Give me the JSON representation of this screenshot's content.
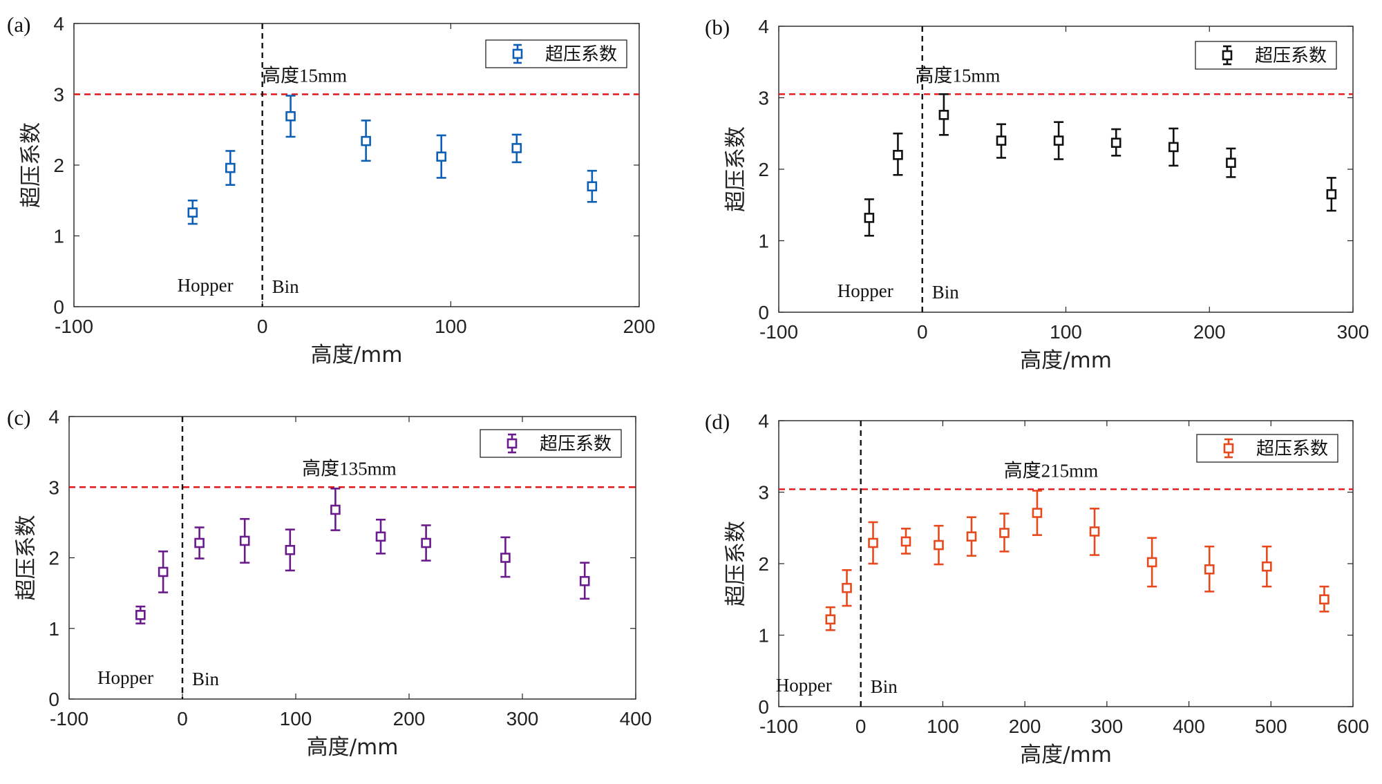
{
  "chart_data": [
    {
      "id": "a",
      "panel_label": "(a)",
      "type": "scatter",
      "xlabel": "高度/mm",
      "ylabel": "超压系数",
      "xlim": [
        -100,
        200
      ],
      "ylim": [
        0,
        4
      ],
      "xticks": [
        -100,
        0,
        100,
        200
      ],
      "yticks": [
        0,
        1,
        2,
        3,
        4
      ],
      "color": "#0C5FB4",
      "legend": "超压系数",
      "legend_position": "top-right",
      "ref_line": 3.0,
      "vline": 0,
      "hopper_label": "Hopper",
      "bin_label": "Bin",
      "annotation": "高度15mm",
      "annotation_at": {
        "x": 15,
        "y": 3.0
      },
      "points": [
        {
          "x": -37,
          "y": 1.33,
          "lo": 1.17,
          "hi": 1.5
        },
        {
          "x": -17,
          "y": 1.96,
          "lo": 1.72,
          "hi": 2.2
        },
        {
          "x": 15,
          "y": 2.69,
          "lo": 2.4,
          "hi": 2.98
        },
        {
          "x": 55,
          "y": 2.34,
          "lo": 2.06,
          "hi": 2.63
        },
        {
          "x": 95,
          "y": 2.12,
          "lo": 1.82,
          "hi": 2.42
        },
        {
          "x": 135,
          "y": 2.24,
          "lo": 2.04,
          "hi": 2.43
        },
        {
          "x": 175,
          "y": 1.7,
          "lo": 1.48,
          "hi": 1.92
        }
      ]
    },
    {
      "id": "b",
      "panel_label": "(b)",
      "type": "scatter",
      "xlabel": "高度/mm",
      "ylabel": "超压系数",
      "xlim": [
        -100,
        300
      ],
      "ylim": [
        0,
        4
      ],
      "xticks": [
        -100,
        0,
        100,
        200,
        300
      ],
      "yticks": [
        0,
        1,
        2,
        3,
        4
      ],
      "color": "#111111",
      "legend": "超压系数",
      "legend_position": "top-right",
      "ref_line": 3.05,
      "vline": 0,
      "hopper_label": "Hopper",
      "bin_label": "Bin",
      "annotation": "高度15mm",
      "annotation_at": {
        "x": 15,
        "y": 3.05
      },
      "points": [
        {
          "x": -37,
          "y": 1.32,
          "lo": 1.07,
          "hi": 1.58
        },
        {
          "x": -17,
          "y": 2.2,
          "lo": 1.92,
          "hi": 2.5
        },
        {
          "x": 15,
          "y": 2.76,
          "lo": 2.48,
          "hi": 3.05
        },
        {
          "x": 55,
          "y": 2.4,
          "lo": 2.16,
          "hi": 2.63
        },
        {
          "x": 95,
          "y": 2.4,
          "lo": 2.14,
          "hi": 2.66
        },
        {
          "x": 135,
          "y": 2.37,
          "lo": 2.19,
          "hi": 2.56
        },
        {
          "x": 175,
          "y": 2.31,
          "lo": 2.05,
          "hi": 2.57
        },
        {
          "x": 215,
          "y": 2.09,
          "lo": 1.89,
          "hi": 2.29
        },
        {
          "x": 285,
          "y": 1.65,
          "lo": 1.42,
          "hi": 1.88
        }
      ]
    },
    {
      "id": "c",
      "panel_label": "(c)",
      "type": "scatter",
      "xlabel": "高度/mm",
      "ylabel": "超压系数",
      "xlim": [
        -100,
        400
      ],
      "ylim": [
        0,
        4
      ],
      "xticks": [
        -100,
        0,
        100,
        200,
        300,
        400
      ],
      "yticks": [
        0,
        1,
        2,
        3,
        4
      ],
      "color": "#6A1A8C",
      "legend": "超压系数",
      "legend_position": "top-right",
      "ref_line": 3.0,
      "vline": 0,
      "hopper_label": "Hopper",
      "bin_label": "Bin",
      "annotation": "高度135mm",
      "annotation_at": {
        "x": 135,
        "y": 3.0
      },
      "points": [
        {
          "x": -37,
          "y": 1.19,
          "lo": 1.07,
          "hi": 1.31
        },
        {
          "x": -17,
          "y": 1.8,
          "lo": 1.51,
          "hi": 2.09
        },
        {
          "x": 15,
          "y": 2.21,
          "lo": 1.99,
          "hi": 2.43
        },
        {
          "x": 55,
          "y": 2.24,
          "lo": 1.93,
          "hi": 2.55
        },
        {
          "x": 95,
          "y": 2.11,
          "lo": 1.82,
          "hi": 2.4
        },
        {
          "x": 135,
          "y": 2.68,
          "lo": 2.39,
          "hi": 2.98
        },
        {
          "x": 175,
          "y": 2.3,
          "lo": 2.06,
          "hi": 2.54
        },
        {
          "x": 215,
          "y": 2.21,
          "lo": 1.96,
          "hi": 2.46
        },
        {
          "x": 285,
          "y": 2.0,
          "lo": 1.73,
          "hi": 2.29
        },
        {
          "x": 355,
          "y": 1.67,
          "lo": 1.42,
          "hi": 1.93
        }
      ]
    },
    {
      "id": "d",
      "panel_label": "(d)",
      "type": "scatter",
      "xlabel": "高度/mm",
      "ylabel": "超压系数",
      "xlim": [
        -100,
        600
      ],
      "ylim": [
        0,
        4
      ],
      "xticks": [
        -100,
        0,
        100,
        200,
        300,
        400,
        500,
        600
      ],
      "yticks": [
        0,
        1,
        2,
        3,
        4
      ],
      "color": "#E8481C",
      "legend": "超压系数",
      "legend_position": "top-right",
      "ref_line": 3.04,
      "vline": 0,
      "hopper_label": "Hopper",
      "bin_label": "Bin",
      "annotation": "高度215mm",
      "annotation_at": {
        "x": 215,
        "y": 3.04
      },
      "points": [
        {
          "x": -37,
          "y": 1.22,
          "lo": 1.07,
          "hi": 1.39
        },
        {
          "x": -17,
          "y": 1.66,
          "lo": 1.41,
          "hi": 1.91
        },
        {
          "x": 15,
          "y": 2.29,
          "lo": 2.0,
          "hi": 2.58
        },
        {
          "x": 55,
          "y": 2.31,
          "lo": 2.14,
          "hi": 2.49
        },
        {
          "x": 95,
          "y": 2.26,
          "lo": 1.99,
          "hi": 2.53
        },
        {
          "x": 135,
          "y": 2.38,
          "lo": 2.11,
          "hi": 2.65
        },
        {
          "x": 175,
          "y": 2.43,
          "lo": 2.17,
          "hi": 2.7
        },
        {
          "x": 215,
          "y": 2.71,
          "lo": 2.4,
          "hi": 3.02
        },
        {
          "x": 285,
          "y": 2.45,
          "lo": 2.12,
          "hi": 2.77
        },
        {
          "x": 355,
          "y": 2.02,
          "lo": 1.68,
          "hi": 2.36
        },
        {
          "x": 425,
          "y": 1.92,
          "lo": 1.61,
          "hi": 2.24
        },
        {
          "x": 495,
          "y": 1.96,
          "lo": 1.68,
          "hi": 2.24
        },
        {
          "x": 565,
          "y": 1.5,
          "lo": 1.33,
          "hi": 1.68
        }
      ]
    }
  ]
}
